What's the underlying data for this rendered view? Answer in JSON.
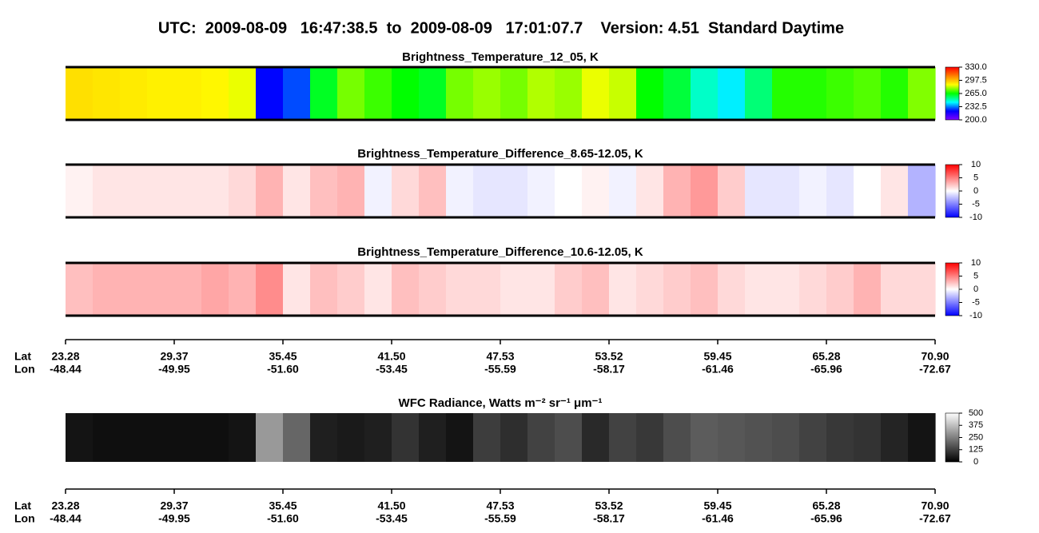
{
  "title": "UTC:  2009-08-09   16:47:38.5  to  2009-08-09   17:01:07.7    Version: 4.51  Standard Daytime",
  "track_axis": {
    "lat_label": "Lat",
    "lon_label": "Lon",
    "lat": [
      "23.28",
      "29.37",
      "35.45",
      "41.50",
      "47.53",
      "53.52",
      "59.45",
      "65.28",
      "70.90"
    ],
    "lon": [
      "-48.44",
      "-49.95",
      "-51.60",
      "-53.45",
      "-55.59",
      "-58.17",
      "-61.46",
      "-65.96",
      "-72.67"
    ]
  },
  "chart_data": [
    {
      "type": "heatmap",
      "title": "Brightness_Temperature_12_05, K",
      "colormap": [
        "#8000ff",
        "#0000ff",
        "#00ffff",
        "#00ff00",
        "#ffff00",
        "#ff8000",
        "#ff0000"
      ],
      "clim": [
        200,
        330
      ],
      "cticks": [
        {
          "value": 330,
          "label": "330.0"
        },
        297.5,
        {
          "value": 265,
          "label": "265.0"
        },
        232.5,
        {
          "value": 200,
          "label": "200.0"
        }
      ],
      "values": [
        292,
        291,
        290,
        289,
        289,
        288,
        285,
        222,
        228,
        262,
        275,
        270,
        265,
        262,
        275,
        278,
        275,
        280,
        278,
        285,
        282,
        265,
        260,
        248,
        242,
        255,
        268,
        268,
        270,
        272,
        268,
        276
      ]
    },
    {
      "type": "heatmap",
      "title": "Brightness_Temperature_Difference_8.65-12.05, K",
      "colormap": [
        "#0000ff",
        "#ffffff",
        "#ff0000"
      ],
      "clim": [
        -10,
        10
      ],
      "cticks": [
        10,
        5,
        0,
        -5,
        -10
      ],
      "values": [
        0.5,
        1,
        1,
        1,
        1,
        1,
        1.5,
        3,
        1,
        2.5,
        3,
        -0.5,
        1.5,
        2.5,
        -0.5,
        -1,
        -1,
        -0.5,
        0,
        0.5,
        -0.5,
        1,
        3,
        4,
        2,
        -1,
        -1,
        -0.5,
        -1,
        0,
        1,
        -3
      ]
    },
    {
      "type": "heatmap",
      "title": "Brightness_Temperature_Difference_10.6-12.05, K",
      "colormap": [
        "#0000ff",
        "#ffffff",
        "#ff0000"
      ],
      "clim": [
        -10,
        10
      ],
      "cticks": [
        10,
        5,
        0,
        -5,
        -10
      ],
      "values": [
        2.5,
        3,
        3,
        3,
        3,
        3.5,
        3,
        4.5,
        1,
        2.5,
        2,
        1,
        2.5,
        2,
        1.5,
        1.5,
        1,
        1,
        2,
        2.5,
        1,
        1.5,
        2,
        2.5,
        1.5,
        1,
        1,
        1.5,
        2,
        3,
        1.5,
        1.5
      ]
    },
    {
      "type": "heatmap",
      "title": "WFC Radiance, Watts m⁻² sr⁻¹ μm⁻¹",
      "colormap": [
        "#000000",
        "#ffffff"
      ],
      "clim": [
        0,
        500
      ],
      "cticks": [
        500,
        375,
        250,
        125,
        0
      ],
      "values": [
        40,
        30,
        30,
        30,
        30,
        30,
        40,
        300,
        200,
        60,
        50,
        60,
        100,
        60,
        40,
        120,
        90,
        130,
        150,
        80,
        130,
        110,
        150,
        180,
        170,
        160,
        150,
        130,
        110,
        100,
        70,
        40
      ]
    }
  ]
}
